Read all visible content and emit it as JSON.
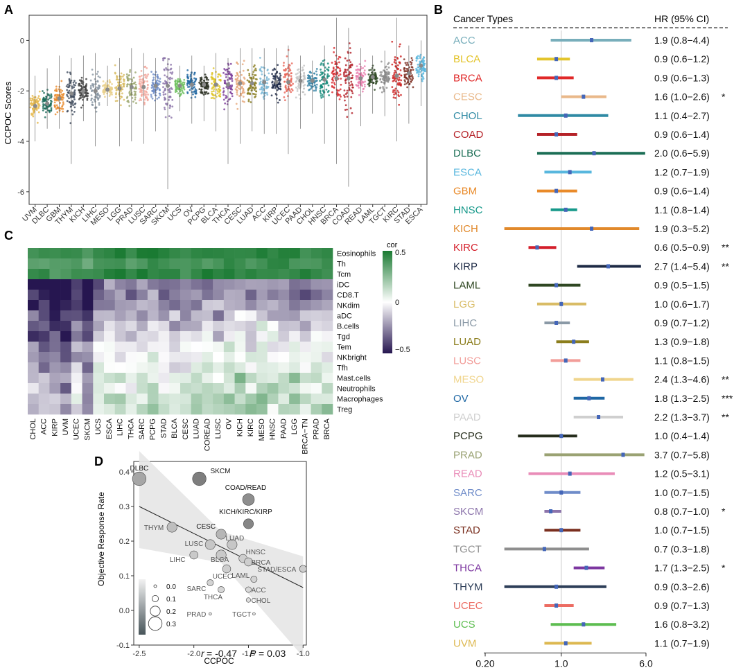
{
  "chart_data": [
    {
      "panel": "A",
      "type": "scatter",
      "title": "",
      "ylabel": "CCPOC Scores",
      "xlabel": "",
      "ylim": [
        -6.5,
        1.0
      ],
      "yticks": [
        0,
        -2,
        -4,
        -6
      ],
      "categories": [
        "UVM",
        "DLBC",
        "GBM",
        "THYM",
        "KICH",
        "LIHC",
        "MESO",
        "LGG",
        "PRAD",
        "LUSC",
        "SARC",
        "SKCM",
        "UCS",
        "OV",
        "PCPG",
        "BLCA",
        "THCA",
        "CESC",
        "LUAD",
        "ACC",
        "KIRP",
        "UCEC",
        "PAAD",
        "CHOL",
        "HNSC",
        "BRCA",
        "COAD",
        "READ",
        "LAML",
        "TGCT",
        "KIRC",
        "STAD",
        "ESCA"
      ],
      "medians": [
        -2.6,
        -2.5,
        -2.3,
        -2.1,
        -2.0,
        -2.0,
        -1.95,
        -1.9,
        -1.85,
        -1.85,
        -1.8,
        -1.8,
        -1.8,
        -1.75,
        -1.75,
        -1.75,
        -1.75,
        -1.7,
        -1.7,
        -1.65,
        -1.65,
        -1.65,
        -1.6,
        -1.6,
        -1.55,
        -1.5,
        -1.5,
        -1.5,
        -1.45,
        -1.45,
        -1.4,
        -1.3,
        -1.0
      ],
      "spread_min": [
        -4.0,
        -3.5,
        -3.5,
        -4.9,
        -3.2,
        -4.2,
        -2.6,
        -4.2,
        -4.0,
        -4.1,
        -3.6,
        -5.9,
        -2.8,
        -3.3,
        -3.2,
        -3.6,
        -4.9,
        -4.1,
        -3.6,
        -3.7,
        -3.7,
        -4.5,
        -3.5,
        -2.9,
        -4.1,
        -4.9,
        -5.8,
        -3.4,
        -2.9,
        -3.0,
        -4.0,
        -3.3,
        -2.6
      ],
      "spread_max": [
        -1.4,
        -1.1,
        -0.6,
        -0.7,
        -0.6,
        -0.5,
        -1.0,
        -0.7,
        -0.3,
        -0.5,
        -0.7,
        -0.7,
        -1.0,
        -0.6,
        -1.0,
        -0.5,
        -0.7,
        -0.3,
        -0.3,
        -0.3,
        -0.3,
        -0.2,
        -0.6,
        -0.8,
        -0.2,
        0.9,
        0.5,
        -0.3,
        -0.6,
        -0.4,
        0.9,
        -0.2,
        0.0
      ],
      "colors": [
        "#e6b84a",
        "#1a6b5a",
        "#e8892a",
        "#3d4a5c",
        "#3a3a3a",
        "#8896a3",
        "#e8d08a",
        "#d8bc62",
        "#9ba66e",
        "#f2a59a",
        "#6f8cc7",
        "#8a72a8",
        "#6ec15f",
        "#2068a3",
        "#2b2f22",
        "#e0c62a",
        "#7a3b98",
        "#e6a87a",
        "#8a7d1f",
        "#7ab8d6",
        "#1f2a48",
        "#e8665a",
        "#c4c4c4",
        "#3a86a8",
        "#138a79",
        "#d8272c",
        "#b21f27",
        "#e97fae",
        "#2f4a25",
        "#8f8f8f",
        "#cc1f1f",
        "#7a2a1e",
        "#5ab6dd"
      ]
    },
    {
      "panel": "B",
      "type": "forest",
      "header_left": "Cancer Types",
      "header_right": "HR (95% CI)",
      "x_ticks": [
        "0.20",
        "1.0",
        "6.0"
      ],
      "xlim": [
        0.2,
        6.0
      ],
      "reference_line": 1.0,
      "rows": [
        {
          "name": "ACC",
          "hr": 1.9,
          "lo": 0.8,
          "hi": 4.4,
          "label": "1.9 (0.8−4.4)",
          "sig": "",
          "color": "#78aebb"
        },
        {
          "name": "BLCA",
          "hr": 0.9,
          "lo": 0.6,
          "hi": 1.2,
          "label": "0.9 (0.6−1.2)",
          "sig": "",
          "color": "#e3c42a"
        },
        {
          "name": "BRCA",
          "hr": 0.9,
          "lo": 0.6,
          "hi": 1.3,
          "label": "0.9 (0.6−1.3)",
          "sig": "",
          "color": "#e02828"
        },
        {
          "name": "CESC",
          "hr": 1.6,
          "lo": 1.0,
          "hi": 2.6,
          "label": "1.6 (1.0−2.6)",
          "sig": "*",
          "color": "#e9b889"
        },
        {
          "name": "CHOL",
          "hr": 1.1,
          "lo": 0.4,
          "hi": 2.7,
          "label": "1.1 (0.4−2.7)",
          "sig": "",
          "color": "#2f8aa4"
        },
        {
          "name": "COAD",
          "hr": 0.9,
          "lo": 0.6,
          "hi": 1.4,
          "label": "0.9 (0.6−1.4)",
          "sig": "",
          "color": "#b52228"
        },
        {
          "name": "DLBC",
          "hr": 2.0,
          "lo": 0.6,
          "hi": 5.9,
          "label": "2.0 (0.6−5.9)",
          "sig": "",
          "color": "#1b6e55"
        },
        {
          "name": "ESCA",
          "hr": 1.2,
          "lo": 0.7,
          "hi": 1.9,
          "label": "1.2 (0.7−1.9)",
          "sig": "",
          "color": "#58b7de"
        },
        {
          "name": "GBM",
          "hr": 0.9,
          "lo": 0.6,
          "hi": 1.4,
          "label": "0.9 (0.6−1.4)",
          "sig": "",
          "color": "#e98a29"
        },
        {
          "name": "HNSC",
          "hr": 1.1,
          "lo": 0.8,
          "hi": 1.4,
          "label": "1.1 (0.8−1.4)",
          "sig": "",
          "color": "#17998a"
        },
        {
          "name": "KICH",
          "hr": 1.9,
          "lo": 0.3,
          "hi": 5.2,
          "label": "1.9 (0.3−5.2)",
          "sig": "",
          "color": "#e1892b"
        },
        {
          "name": "KIRC",
          "hr": 0.6,
          "lo": 0.5,
          "hi": 0.9,
          "label": "0.6 (0.5−0.9)",
          "sig": "**",
          "color": "#d41e2a"
        },
        {
          "name": "KIRP",
          "hr": 2.7,
          "lo": 1.4,
          "hi": 5.4,
          "label": "2.7 (1.4−5.4)",
          "sig": "**",
          "color": "#1d2a45"
        },
        {
          "name": "LAML",
          "hr": 0.9,
          "lo": 0.5,
          "hi": 1.5,
          "label": "0.9 (0.5−1.5)",
          "sig": "",
          "color": "#2f4722"
        },
        {
          "name": "LGG",
          "hr": 1.0,
          "lo": 0.6,
          "hi": 1.7,
          "label": "1.0 (0.6−1.7)",
          "sig": "",
          "color": "#d9bc66"
        },
        {
          "name": "LIHC",
          "hr": 0.9,
          "lo": 0.7,
          "hi": 1.2,
          "label": "0.9 (0.7−1.2)",
          "sig": "",
          "color": "#8a99a6"
        },
        {
          "name": "LUAD",
          "hr": 1.3,
          "lo": 0.9,
          "hi": 1.8,
          "label": "1.3 (0.9−1.8)",
          "sig": "",
          "color": "#8b7d1c"
        },
        {
          "name": "LUSC",
          "hr": 1.1,
          "lo": 0.8,
          "hi": 1.5,
          "label": "1.1 (0.8−1.5)",
          "sig": "",
          "color": "#f29d99"
        },
        {
          "name": "MESO",
          "hr": 2.4,
          "lo": 1.3,
          "hi": 4.6,
          "label": "2.4 (1.3−4.6)",
          "sig": "**",
          "color": "#f0d58d"
        },
        {
          "name": "OV",
          "hr": 1.8,
          "lo": 1.3,
          "hi": 2.5,
          "label": "1.8 (1.3−2.5)",
          "sig": "***",
          "color": "#1e67a4"
        },
        {
          "name": "PAAD",
          "hr": 2.2,
          "lo": 1.3,
          "hi": 3.7,
          "label": "2.2 (1.3−3.7)",
          "sig": "**",
          "color": "#cfcfcf"
        },
        {
          "name": "PCPG",
          "hr": 1.0,
          "lo": 0.4,
          "hi": 1.4,
          "label": "1.0 (0.4−1.4)",
          "sig": "",
          "color": "#262d1c"
        },
        {
          "name": "PRAD",
          "hr": 3.7,
          "lo": 0.7,
          "hi": 5.8,
          "label": "3.7 (0.7−5.8)",
          "sig": "",
          "color": "#9aa273"
        },
        {
          "name": "READ",
          "hr": 1.2,
          "lo": 0.5,
          "hi": 3.1,
          "label": "1.2 (0.5−3.1)",
          "sig": "",
          "color": "#e98cb8"
        },
        {
          "name": "SARC",
          "hr": 1.0,
          "lo": 0.7,
          "hi": 1.5,
          "label": "1.0 (0.7−1.5)",
          "sig": "",
          "color": "#6f8cc9"
        },
        {
          "name": "SKCM",
          "hr": 0.8,
          "lo": 0.7,
          "hi": 1.0,
          "label": "0.8 (0.7−1.0)",
          "sig": "*",
          "color": "#8c74ab"
        },
        {
          "name": "STAD",
          "hr": 1.0,
          "lo": 0.7,
          "hi": 1.5,
          "label": "1.0 (0.7−1.5)",
          "sig": "",
          "color": "#7a2f1f"
        },
        {
          "name": "TGCT",
          "hr": 0.7,
          "lo": 0.3,
          "hi": 1.8,
          "label": "0.7 (0.3−1.8)",
          "sig": "",
          "color": "#8e8e8e"
        },
        {
          "name": "THCA",
          "hr": 1.7,
          "lo": 1.3,
          "hi": 2.5,
          "label": "1.7 (1.3−2.5)",
          "sig": "*",
          "color": "#7d37a0"
        },
        {
          "name": "THYM",
          "hr": 0.9,
          "lo": 0.3,
          "hi": 2.6,
          "label": "0.9 (0.3−2.6)",
          "sig": "",
          "color": "#2d3e58"
        },
        {
          "name": "UCEC",
          "hr": 0.9,
          "lo": 0.7,
          "hi": 1.3,
          "label": "0.9 (0.7−1.3)",
          "sig": "",
          "color": "#ec6c62"
        },
        {
          "name": "UCS",
          "hr": 1.6,
          "lo": 0.8,
          "hi": 3.2,
          "label": "1.6 (0.8−3.2)",
          "sig": "",
          "color": "#5dbd50"
        },
        {
          "name": "UVM",
          "hr": 1.1,
          "lo": 0.7,
          "hi": 1.9,
          "label": "1.1 (0.7−1.9)",
          "sig": "",
          "color": "#ddb850"
        }
      ]
    },
    {
      "panel": "C",
      "type": "heatmap",
      "legend_title": "cor",
      "legend_ticks": [
        "0.5",
        "0",
        "−0.5"
      ],
      "value_range": [
        -0.5,
        0.5
      ],
      "rows": [
        "Eosinophils",
        "Th",
        "Tcm",
        "iDC",
        "CD8.T",
        "NKdim",
        "aDC",
        "B.cells",
        "Tgd",
        "Tem",
        "NKbright",
        "Tfh",
        "Mast.cells",
        "Neutrophils",
        "Macrophages",
        "Treg"
      ],
      "cols": [
        "CHOL",
        "ACC",
        "KIRP",
        "UVM",
        "UCEC",
        "SKCM",
        "UCS",
        "ESCA",
        "LIHC",
        "THCA",
        "SARC",
        "PCPG",
        "STAD",
        "BLCA",
        "CESC",
        "LUAD",
        "COREAD",
        "LUSC",
        "OV",
        "KICH",
        "KIRC",
        "MESO",
        "HNSC",
        "PAAD",
        "LGG",
        "BRCA−TN",
        "PRAD",
        "BRCA"
      ],
      "row_means": [
        0.45,
        0.4,
        0.45,
        -0.3,
        -0.3,
        -0.25,
        -0.2,
        -0.15,
        -0.12,
        -0.05,
        -0.05,
        0.0,
        0.05,
        0.05,
        0.1,
        0.1
      ],
      "col_shift": [
        -0.2,
        -0.25,
        -0.25,
        -0.3,
        -0.1,
        -0.25,
        0.0,
        0.05,
        0.05,
        0.0,
        0.05,
        0.05,
        0.0,
        0.0,
        0.0,
        0.05,
        0.05,
        0.05,
        0.1,
        0.1,
        0.05,
        0.1,
        0.05,
        0.05,
        0.05,
        0.0,
        0.05,
        0.05
      ]
    },
    {
      "panel": "D",
      "type": "scatter",
      "xlabel": "CCPOC",
      "ylabel": "Objective Response Rate",
      "xlim": [
        -2.55,
        -0.97
      ],
      "ylim": [
        -0.1,
        0.43
      ],
      "x_ticks": [
        "-2.5",
        "-2.0",
        "-1.5",
        "-1.0"
      ],
      "y_ticks": [
        "-0.1",
        "0.0",
        "0.1",
        "0.2",
        "0.3",
        "0.4"
      ],
      "stat": {
        "r_label": "r",
        "r_value": "= -0.47",
        "p_label": "P",
        "p_value": "= 0.03"
      },
      "regression": {
        "slope": -0.156,
        "intercept": -0.09
      },
      "size_legend": [
        "0.0",
        "0.1",
        "0.2",
        "0.3"
      ],
      "points": [
        {
          "label": "DLBC",
          "x": -2.5,
          "y": 0.38,
          "size": 0.3,
          "shade": 0.6
        },
        {
          "label": "SKCM",
          "x": -1.95,
          "y": 0.38,
          "size": 0.3,
          "shade": 0.35
        },
        {
          "label": "COAD/READ",
          "x": -1.5,
          "y": 0.32,
          "size": 0.25,
          "shade": 0.45
        },
        {
          "label": "KICH/KIRC/KIRP",
          "x": -1.5,
          "y": 0.25,
          "size": 0.2,
          "shade": 0.4
        },
        {
          "label": "THYM",
          "x": -2.2,
          "y": 0.24,
          "size": 0.2,
          "shade": 0.75
        },
        {
          "label": "CESC",
          "x": -1.75,
          "y": 0.22,
          "size": 0.2,
          "shade": 0.7
        },
        {
          "label": "LUAD",
          "x": -1.65,
          "y": 0.19,
          "size": 0.2,
          "shade": 0.8
        },
        {
          "label": "LUSC",
          "x": -1.85,
          "y": 0.19,
          "size": 0.2,
          "shade": 0.8
        },
        {
          "label": "LIHC",
          "x": -2.0,
          "y": 0.16,
          "size": 0.15,
          "shade": 0.82
        },
        {
          "label": "BLCA",
          "x": -1.75,
          "y": 0.16,
          "size": 0.2,
          "shade": 0.82
        },
        {
          "label": "HNSC",
          "x": -1.55,
          "y": 0.15,
          "size": 0.15,
          "shade": 0.85
        },
        {
          "label": "BRCA",
          "x": -1.5,
          "y": 0.14,
          "size": 0.15,
          "shade": 0.85
        },
        {
          "label": "UCEC",
          "x": -1.7,
          "y": 0.12,
          "size": 0.15,
          "shade": 0.85
        },
        {
          "label": "STAD/ESCA",
          "x": -1.0,
          "y": 0.12,
          "size": 0.12,
          "shade": 0.85
        },
        {
          "label": "LAML",
          "x": -1.45,
          "y": 0.09,
          "size": 0.1,
          "shade": 0.88
        },
        {
          "label": "SARC",
          "x": -1.85,
          "y": 0.08,
          "size": 0.1,
          "shade": 0.88
        },
        {
          "label": "THCA",
          "x": -1.75,
          "y": 0.06,
          "size": 0.1,
          "shade": 0.9
        },
        {
          "label": "ACC",
          "x": -1.5,
          "y": 0.06,
          "size": 0.08,
          "shade": 0.92
        },
        {
          "label": "CHOL",
          "x": -1.5,
          "y": 0.03,
          "size": 0.05,
          "shade": 0.95
        },
        {
          "label": "PRAD",
          "x": -1.85,
          "y": -0.01,
          "size": 0.0,
          "shade": 0.95
        },
        {
          "label": "TGCT",
          "x": -1.45,
          "y": -0.01,
          "size": 0.0,
          "shade": 0.95
        }
      ]
    }
  ],
  "panel_labels": [
    "A",
    "B",
    "C",
    "D"
  ]
}
